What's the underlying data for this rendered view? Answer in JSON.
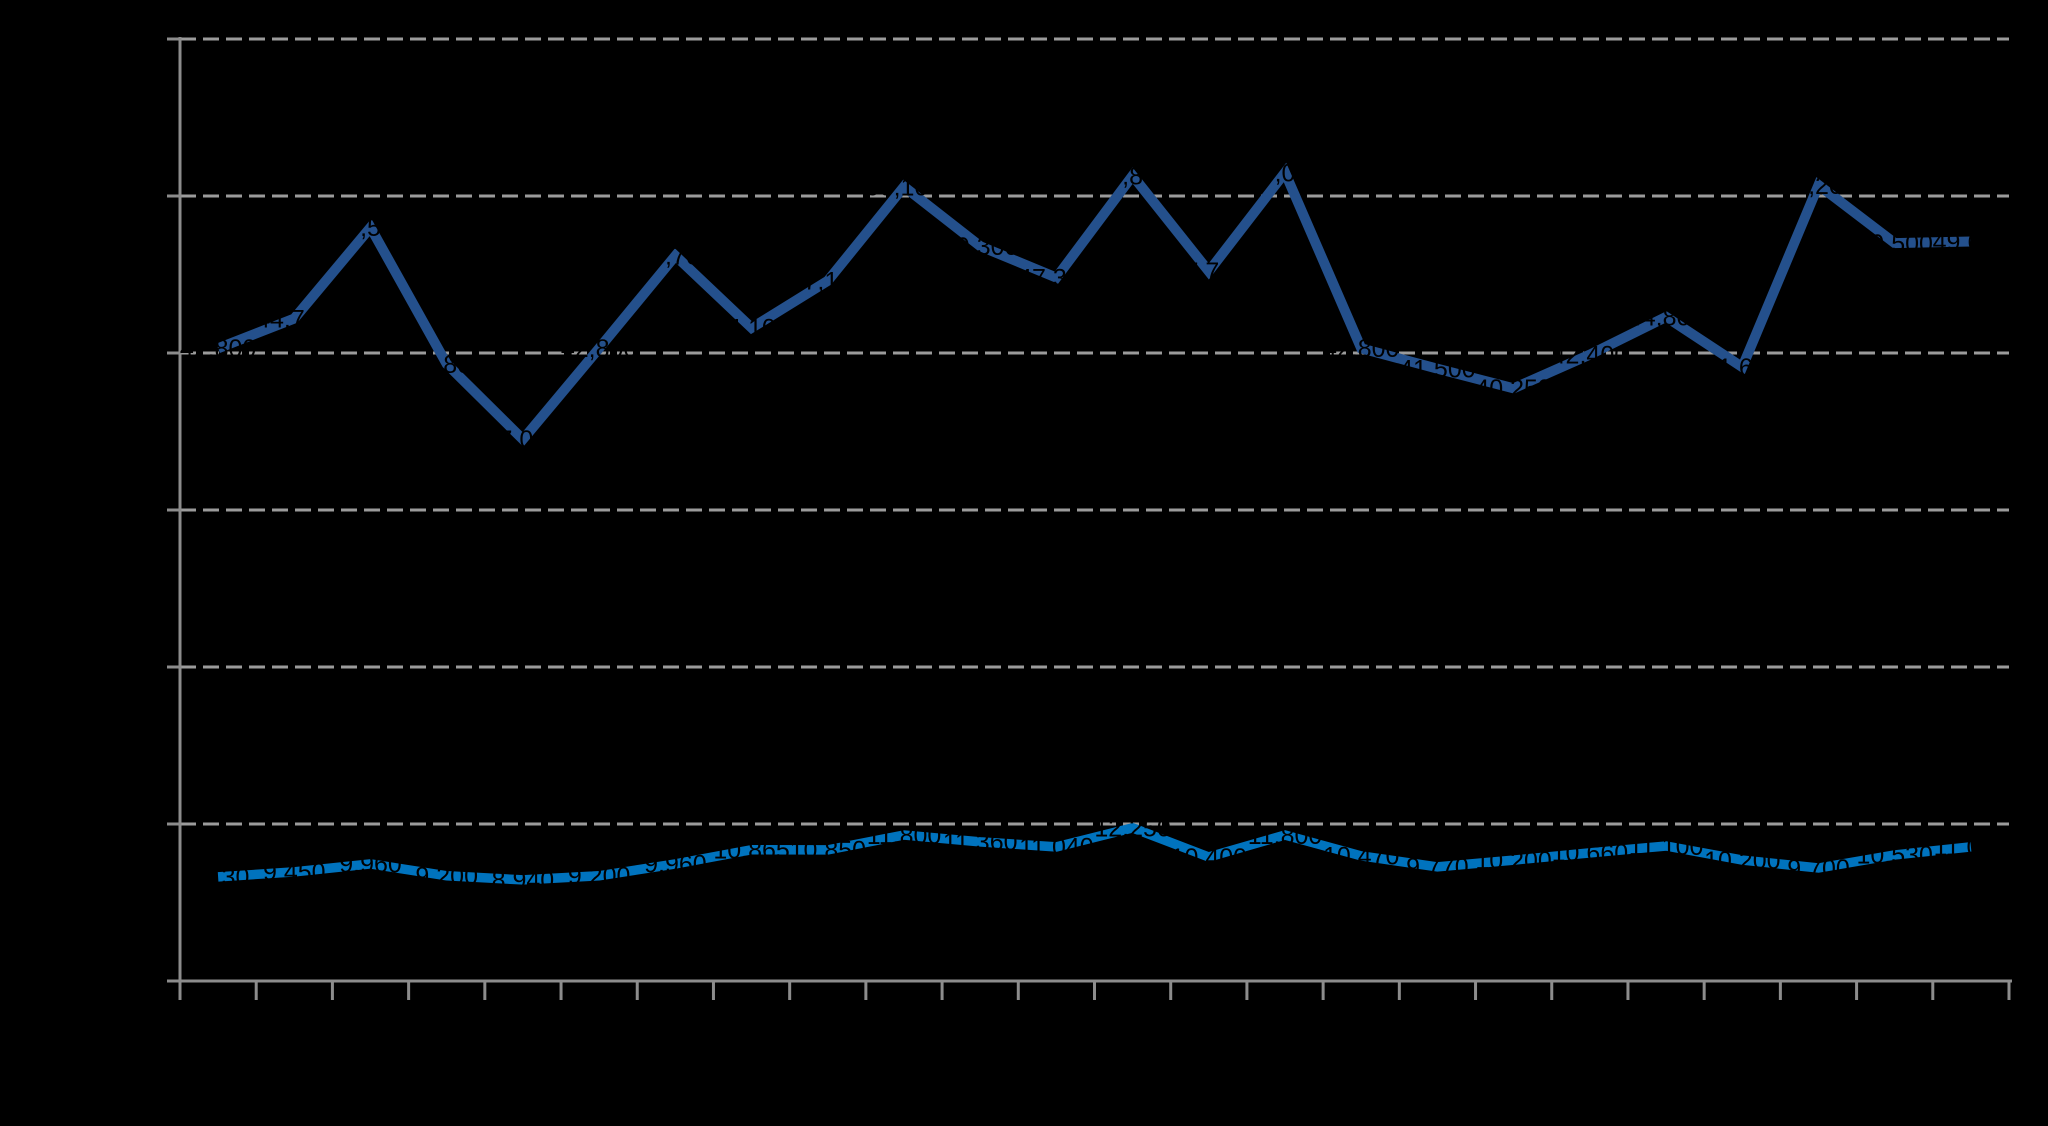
{
  "canvas": {
    "background_color": "#000000",
    "axis_color": "#8C8C8C",
    "tick_color": "#8C8C8C",
    "gridline_color": "#9B9B9B",
    "gridline_dash": [
      16,
      7
    ],
    "axis_stroke_width": 3,
    "tick_length_left": 13,
    "tick_length_bottom": 19
  },
  "chart_data": {
    "type": "line",
    "title": "",
    "legend": "none",
    "grid": "horizontal-dashed",
    "points": 24,
    "x": [
      1,
      2,
      3,
      4,
      5,
      6,
      7,
      8,
      9,
      10,
      11,
      12,
      13,
      14,
      15,
      16,
      17,
      18,
      19,
      20,
      21,
      22,
      23,
      24
    ],
    "x_tick_count": 25,
    "x_tick_labels_visible": false,
    "y_tick_labels_visible": false,
    "ylim": [
      2500,
      62500
    ],
    "y_major_unit": 10000,
    "gridline_values": [
      12500,
      22500,
      32500,
      42500,
      52500,
      62500
    ],
    "values_estimated_from_pixels": true,
    "series": [
      {
        "name": "dark-blue-series",
        "color": "#24508C",
        "stroke_width": 10,
        "values": [
          42800,
          44700,
          50500,
          41800,
          37000,
          42800,
          48700,
          44100,
          47100,
          53100,
          49300,
          47300,
          53800,
          47700,
          54000,
          42800,
          41500,
          40253,
          42400,
          44800,
          41600,
          53200,
          49500,
          49600
        ]
      },
      {
        "name": "light-blue-series",
        "color": "#0073BE",
        "stroke_width": 9.5,
        "values": [
          9130,
          9450,
          9960,
          9200,
          8940,
          9200,
          9960,
          10865,
          10850,
          11800,
          11360,
          11040,
          12250,
          10400,
          11800,
          10470,
          9770,
          10200,
          10660,
          11100,
          10200,
          9700,
          10530,
          11040
        ]
      }
    ],
    "data_labels": {
      "position": "center-on-point",
      "number_format": "#,##0",
      "color": "#000000",
      "note": "labels are black text on black background; visible only as silhouettes where they cross the lines",
      "legible_fragments": [
        "10,865",
        "40,253"
      ]
    }
  }
}
